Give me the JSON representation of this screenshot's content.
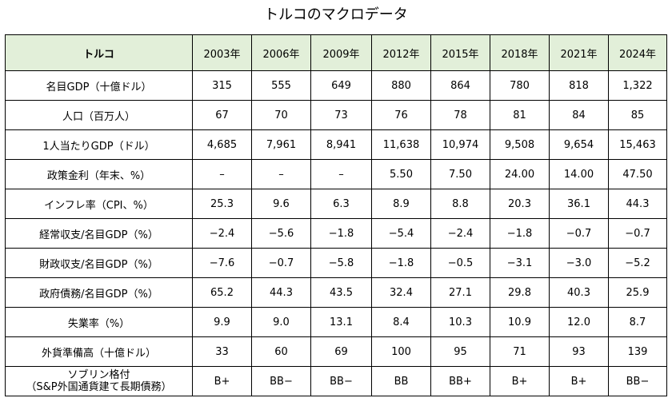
{
  "title": "トルコのマクロデータ",
  "table": {
    "corner_label": "トルコ",
    "years": [
      "2003年",
      "2006年",
      "2009年",
      "2012年",
      "2015年",
      "2018年",
      "2021年",
      "2024年"
    ],
    "rows": [
      {
        "label": "名目GDP（十億ドル）",
        "values": [
          "315",
          "555",
          "649",
          "880",
          "864",
          "780",
          "818",
          "1,322"
        ]
      },
      {
        "label": "人口（百万人）",
        "values": [
          "67",
          "70",
          "73",
          "76",
          "78",
          "81",
          "84",
          "85"
        ]
      },
      {
        "label": "1人当たりGDP（ドル）",
        "values": [
          "4,685",
          "7,961",
          "8,941",
          "11,638",
          "10,974",
          "9,508",
          "9,654",
          "15,463"
        ]
      },
      {
        "label": "政策金利（年末、%）",
        "values": [
          "–",
          "–",
          "–",
          "5.50",
          "7.50",
          "24.00",
          "14.00",
          "47.50"
        ]
      },
      {
        "label": "インフレ率（CPI、%）",
        "values": [
          "25.3",
          "9.6",
          "6.3",
          "8.9",
          "8.8",
          "20.3",
          "36.1",
          "44.3"
        ]
      },
      {
        "label": "経常収支/名目GDP（%）",
        "values": [
          "−2.4",
          "−5.6",
          "−1.8",
          "−5.4",
          "−2.4",
          "−1.8",
          "−0.7",
          "−0.7"
        ]
      },
      {
        "label": "財政収支/名目GDP（%）",
        "values": [
          "−7.6",
          "−0.7",
          "−5.8",
          "−1.8",
          "−0.5",
          "−3.1",
          "−3.0",
          "−5.2"
        ]
      },
      {
        "label": "政府債務/名目GDP（%）",
        "values": [
          "65.2",
          "44.3",
          "43.5",
          "32.4",
          "27.1",
          "29.8",
          "40.3",
          "25.9"
        ]
      },
      {
        "label": "失業率（%）",
        "values": [
          "9.9",
          "9.0",
          "13.1",
          "8.4",
          "10.3",
          "10.9",
          "12.0",
          "8.7"
        ]
      },
      {
        "label": "外貨準備高（十億ドル）",
        "values": [
          "33",
          "60",
          "69",
          "100",
          "95",
          "71",
          "93",
          "139"
        ]
      }
    ],
    "last_row": {
      "label_line1": "ソブリン格付",
      "label_line2": "（S&P外国通貨建て長期債務）",
      "values": [
        "B+",
        "BB−",
        "BB−",
        "BB",
        "BB+",
        "B+",
        "B+",
        "BB−"
      ]
    }
  }
}
